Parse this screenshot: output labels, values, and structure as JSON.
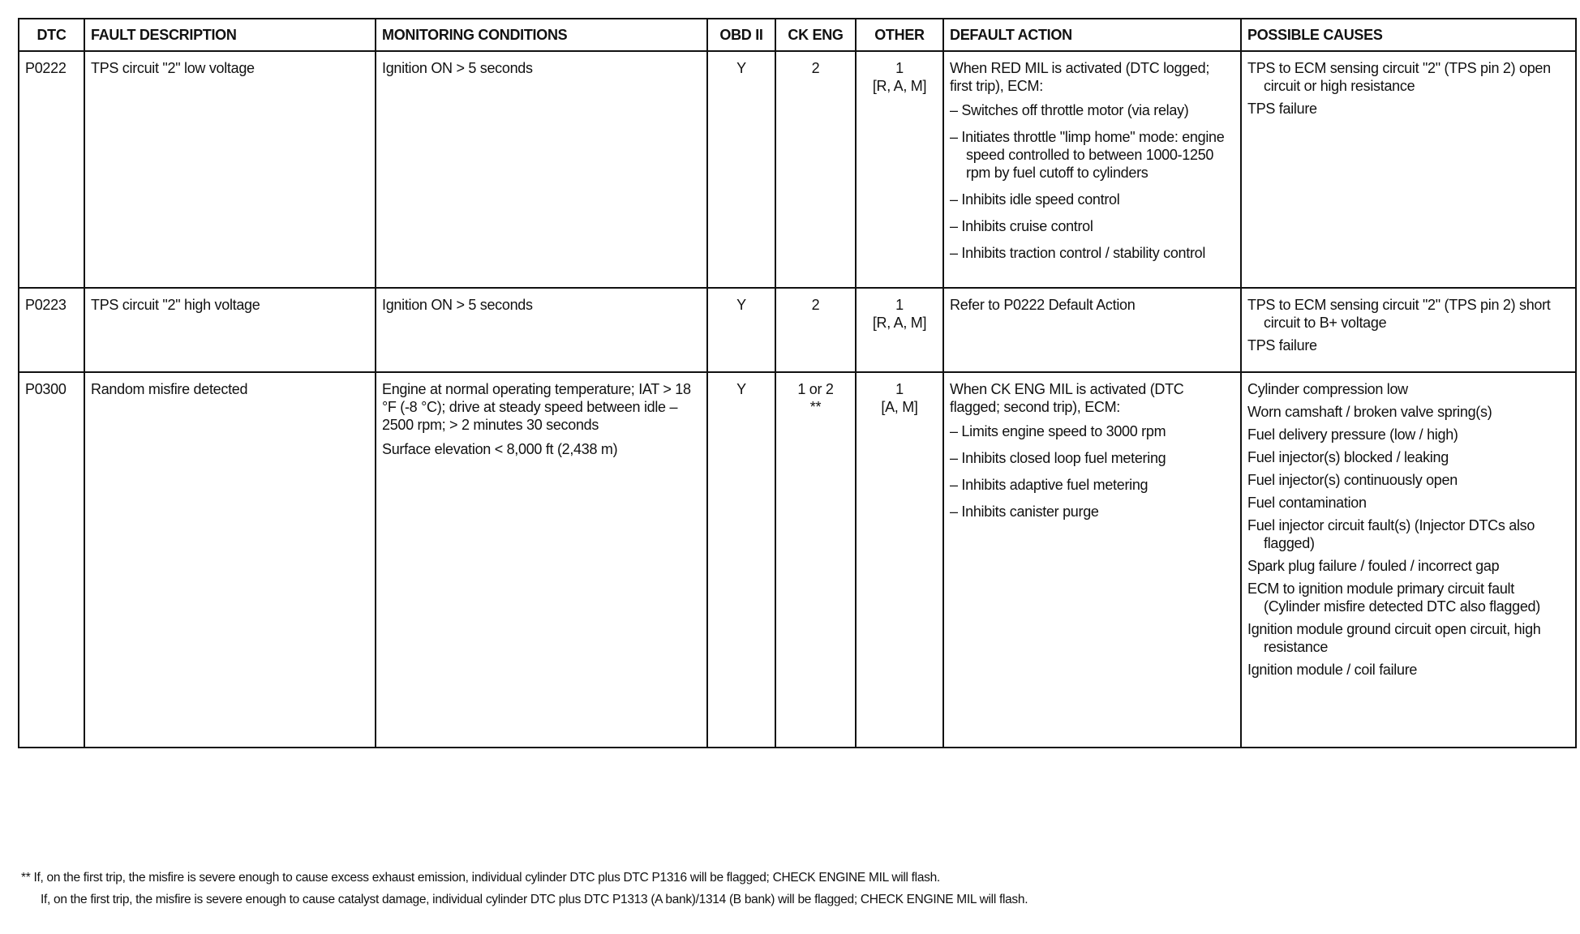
{
  "headers": [
    "DTC",
    "FAULT DESCRIPTION",
    "MONITORING CONDITIONS",
    "OBD II",
    "CK ENG",
    "OTHER",
    "DEFAULT ACTION",
    "POSSIBLE CAUSES"
  ],
  "rows": [
    {
      "dtc": "P0222",
      "fault": "TPS circuit \"2\" low voltage",
      "monitoring": [
        "Ignition ON > 5 seconds"
      ],
      "obd": "Y",
      "ckeng": "2",
      "ckeng_note": "",
      "other": "1",
      "other_note": "[R, A, M]",
      "default_intro": "When RED MIL is activated (DTC logged; first trip), ECM:",
      "default_items": [
        "– Switches off throttle motor (via relay)",
        "– Initiates throttle \"limp home\" mode: engine speed controlled to between 1000-1250 rpm by fuel cutoff to cylinders",
        "– Inhibits idle speed control",
        "– Inhibits cruise control",
        "– Inhibits traction control / stability control"
      ],
      "causes": [
        "TPS to ECM sensing circuit \"2\" (TPS pin 2) open circuit or high resistance",
        "TPS failure"
      ]
    },
    {
      "dtc": "P0223",
      "fault": "TPS circuit \"2\" high voltage",
      "monitoring": [
        "Ignition ON > 5 seconds"
      ],
      "obd": "Y",
      "ckeng": "2",
      "ckeng_note": "",
      "other": "1",
      "other_note": "[R, A, M]",
      "default_intro": "Refer to P0222 Default Action",
      "default_items": [],
      "causes": [
        "TPS to ECM sensing circuit \"2\" (TPS pin 2) short circuit to B+ voltage",
        "TPS failure"
      ]
    },
    {
      "dtc": "P0300",
      "fault": "Random misfire detected",
      "monitoring": [
        "Engine at normal operating temperature; IAT > 18 °F (-8 °C); drive at steady speed between idle – 2500 rpm; > 2 minutes 30 seconds",
        "Surface elevation < 8,000 ft (2,438 m)"
      ],
      "obd": "Y",
      "ckeng": "1 or 2",
      "ckeng_note": "**",
      "other": "1",
      "other_note": "[A, M]",
      "default_intro": "When CK ENG MIL is activated (DTC flagged; second trip), ECM:",
      "default_items": [
        "– Limits engine speed to 3000 rpm",
        "– Inhibits closed loop fuel metering",
        "– Inhibits adaptive fuel metering",
        "– Inhibits canister purge"
      ],
      "causes": [
        "Cylinder compression low",
        "Worn camshaft / broken valve spring(s)",
        "Fuel delivery pressure (low / high)",
        "Fuel injector(s) blocked / leaking",
        "Fuel injector(s) continuously open",
        "Fuel contamination",
        "Fuel injector circuit fault(s) (Injector DTCs also flagged)",
        "Spark plug failure / fouled / incorrect gap",
        "ECM to ignition module primary circuit fault (Cylinder misfire detected DTC also flagged)",
        "Ignition module ground circuit open circuit, high resistance",
        "Ignition module / coil failure"
      ]
    }
  ],
  "footnotes": [
    "** If, on the first trip, the misfire is severe enough to cause excess exhaust emission, individual cylinder DTC plus DTC P1316 will be flagged; CHECK ENGINE MIL will flash.",
    "If, on the first trip, the misfire is severe enough to cause catalyst damage, individual cylinder DTC plus DTC P1313 (A bank)/1314 (B bank) will be flagged; CHECK ENGINE MIL will flash."
  ]
}
